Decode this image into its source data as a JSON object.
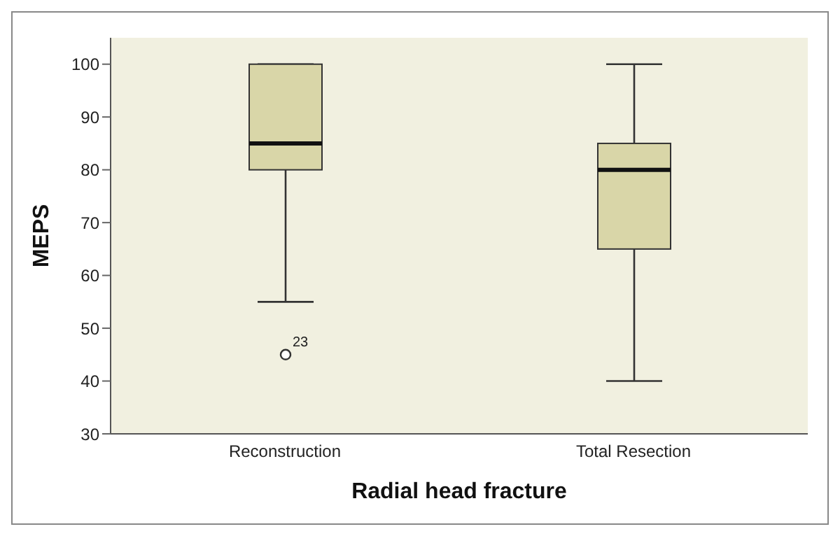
{
  "chart_data": {
    "type": "box",
    "xlabel": "Radial head fracture",
    "ylabel": "MEPS",
    "categories": [
      "Reconstruction",
      "Total Resection"
    ],
    "color": "#d9d6a8",
    "boxes": [
      {
        "low": 55,
        "q1": 80,
        "median": 85,
        "q3": 100,
        "high": 100,
        "outliers": [
          45
        ]
      },
      {
        "low": 40,
        "q1": 65,
        "median": 80,
        "q3": 85,
        "high": 100
      }
    ],
    "annotations": [
      "23"
    ],
    "ylim": [
      30,
      105
    ],
    "yticks": [
      30,
      40,
      50,
      60,
      70,
      80,
      90,
      100
    ],
    "grid": false
  }
}
